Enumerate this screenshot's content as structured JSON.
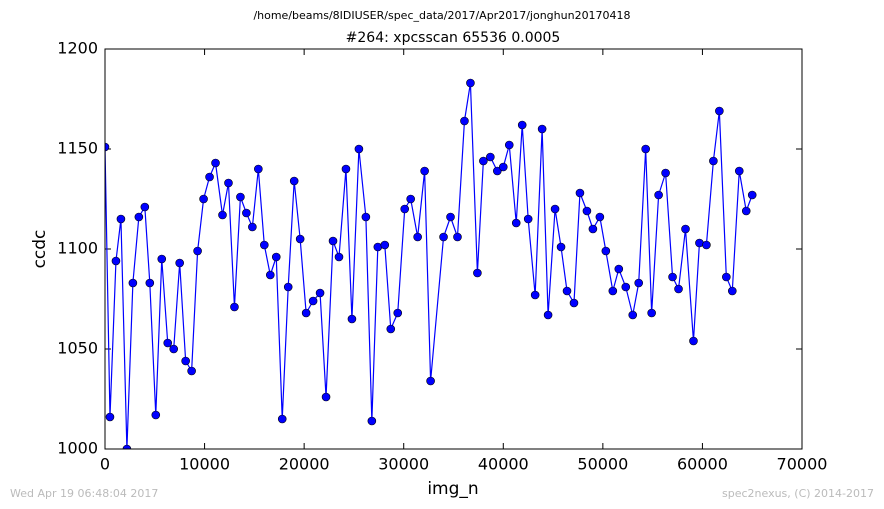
{
  "chart_data": {
    "type": "line",
    "suptitle": "/home/beams/8IDIUSER/spec_data/2017/Apr2017/jonghun20170418",
    "title": "#264: xpcsscan 65536 0.0005",
    "x_label": "img_n",
    "y_label": "ccdc",
    "footer_left": "Wed Apr 19 06:48:04 2017",
    "footer_right": "spec2nexus, (C) 2014-2017",
    "xlim": [
      0,
      70000
    ],
    "ylim": [
      1000,
      1200
    ],
    "xticks": [
      0,
      10000,
      20000,
      30000,
      40000,
      50000,
      60000,
      70000
    ],
    "yticks": [
      1000,
      1050,
      1100,
      1150,
      1200
    ],
    "series": [
      {
        "name": "ccdc",
        "color": "#0000ff",
        "x": [
          0,
          500,
          1100,
          1600,
          2200,
          2800,
          3400,
          4000,
          4500,
          5100,
          5700,
          6300,
          6900,
          7500,
          8100,
          8700,
          9300,
          9900,
          10500,
          11100,
          11800,
          12400,
          13000,
          13600,
          14200,
          14800,
          15400,
          16000,
          16600,
          17200,
          17800,
          18400,
          19000,
          19600,
          20200,
          20900,
          21600,
          22200,
          22900,
          23500,
          24200,
          24800,
          25500,
          26200,
          26800,
          27400,
          28100,
          28700,
          29400,
          30100,
          30700,
          31400,
          32100,
          32700,
          34000,
          34700,
          35400,
          36100,
          36700,
          37400,
          38000,
          38700,
          39400,
          40000,
          40600,
          41300,
          41900,
          42500,
          43200,
          43900,
          44500,
          45200,
          45800,
          46400,
          47100,
          47700,
          48400,
          49000,
          49700,
          50300,
          51000,
          51600,
          52300,
          53000,
          53600,
          54300,
          54900,
          55600,
          56300,
          57000,
          57600,
          58300,
          59100,
          59700,
          60400,
          61100,
          61700,
          62400,
          63000,
          63700,
          64400,
          65000
        ],
        "values": [
          1151,
          1016,
          1094,
          1115,
          1000,
          1083,
          1116,
          1121,
          1083,
          1017,
          1095,
          1053,
          1050,
          1093,
          1044,
          1039,
          1099,
          1125,
          1136,
          1143,
          1117,
          1133,
          1071,
          1126,
          1118,
          1111,
          1140,
          1102,
          1087,
          1096,
          1015,
          1081,
          1134,
          1105,
          1068,
          1074,
          1078,
          1026,
          1104,
          1096,
          1140,
          1065,
          1150,
          1116,
          1014,
          1101,
          1102,
          1060,
          1068,
          1120,
          1125,
          1106,
          1139,
          1034,
          1106,
          1116,
          1106,
          1164,
          1183,
          1088,
          1144,
          1146,
          1139,
          1141,
          1152,
          1113,
          1162,
          1115,
          1077,
          1160,
          1067,
          1120,
          1101,
          1079,
          1073,
          1128,
          1119,
          1110,
          1116,
          1099,
          1079,
          1090,
          1081,
          1067,
          1083,
          1150,
          1068,
          1127,
          1138,
          1086,
          1080,
          1110,
          1054,
          1103,
          1102,
          1144,
          1169,
          1086,
          1079,
          1139,
          1119,
          1127
        ]
      }
    ]
  }
}
